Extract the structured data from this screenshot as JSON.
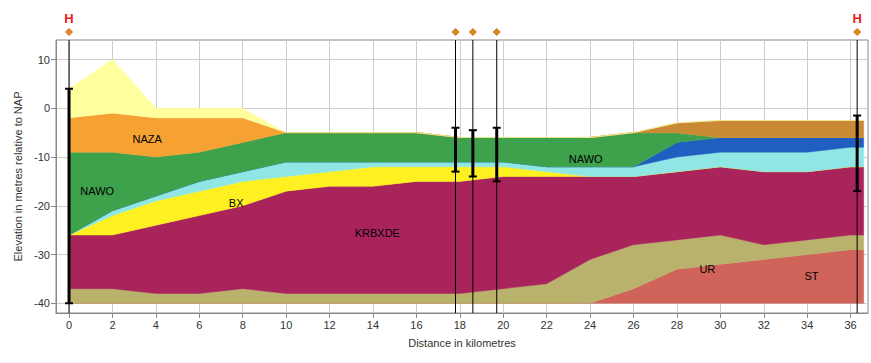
{
  "chart_data": {
    "type": "band",
    "x_label": "Distance in kilometres",
    "y_label": "Elevation in metres relative to NAP",
    "xlim": [
      -0.6,
      36.8
    ],
    "xticks": [
      0,
      2,
      4,
      6,
      8,
      10,
      12,
      14,
      16,
      18,
      20,
      22,
      24,
      26,
      28,
      30,
      32,
      34,
      36
    ],
    "ylim": [
      -42,
      14
    ],
    "yticks": [
      -40,
      -30,
      -20,
      -10,
      0,
      10
    ],
    "grid": true,
    "x": [
      0,
      2,
      4,
      6,
      8,
      10,
      12,
      14,
      16,
      18,
      20,
      22,
      24,
      26,
      28,
      30,
      32,
      34,
      36,
      36.6
    ],
    "bands": [
      {
        "color": "#d0635a",
        "bottom": [
          -40,
          -40,
          -40,
          -40,
          -40,
          -40,
          -40,
          -40,
          -40,
          -40,
          -40,
          -40,
          -40,
          -40,
          -40,
          -40,
          -40,
          -40,
          -40,
          -40
        ],
        "top": [
          -40,
          -40,
          -40,
          -40,
          -40,
          -40,
          -40,
          -40,
          -40,
          -40,
          -40,
          -40,
          -40,
          -37,
          -33,
          -32,
          -31,
          -30,
          -29,
          -29
        ]
      },
      {
        "color": "#b9b26c",
        "top": [
          -37,
          -37,
          -38,
          -38,
          -37,
          -38,
          -38,
          -38,
          -38,
          -38,
          -37,
          -36,
          -31,
          -28,
          -27,
          -26,
          -28,
          -27,
          -26,
          -26
        ]
      },
      {
        "color": "#a8245a",
        "top": [
          -26,
          -26,
          -24,
          -22,
          -20,
          -17,
          -16,
          -16,
          -15,
          -15,
          -14,
          -14,
          -14,
          -14,
          -13,
          -12,
          -13,
          -13,
          -12,
          -12
        ]
      },
      {
        "color": "#fff021",
        "top": [
          -26,
          -22,
          -19,
          -17,
          -15,
          -14,
          -13,
          -12,
          -12,
          -12,
          -12,
          -13,
          -14,
          -14,
          -13,
          -12,
          -13,
          -13,
          -12,
          -12
        ]
      },
      {
        "color": "#8fe6e4",
        "top": [
          -26,
          -21,
          -18,
          -15,
          -13,
          -11,
          -11,
          -11,
          -11,
          -11,
          -11,
          -12,
          -12,
          -12,
          -10,
          -9,
          -9,
          -9,
          -8,
          -8
        ]
      },
      {
        "color": "#1f5fbf",
        "top": [
          -26,
          -21,
          -18,
          -15,
          -13,
          -11,
          -11,
          -11,
          -11,
          -11,
          -11,
          -12,
          -12,
          -12,
          -7,
          -6,
          -6,
          -6,
          -6,
          -6
        ]
      },
      {
        "color": "#3ea14c",
        "top": [
          -9,
          -9,
          -10,
          -9,
          -7,
          -5,
          -5,
          -5,
          -5,
          -6,
          -6,
          -6,
          -6,
          -5,
          -5,
          -6,
          -6,
          -6,
          -6,
          -6
        ]
      },
      {
        "color": "#f5a233",
        "top": [
          -2,
          -1,
          -2,
          -2,
          -2,
          -5,
          -5,
          -5,
          -5,
          -6,
          -6,
          -6,
          -6,
          -5,
          -5,
          -6,
          -6,
          -6,
          -6,
          -6
        ]
      },
      {
        "color": "#c98a36",
        "top": [
          -2,
          -1,
          -2,
          -2,
          -2,
          -5,
          -5,
          -5,
          -5,
          -6,
          -6,
          -6,
          -6,
          -5,
          -3,
          -2.5,
          -2.5,
          -2.5,
          -2.5,
          -2.5
        ]
      },
      {
        "color": "#ffff9e",
        "top": [
          4,
          10,
          0,
          0,
          0,
          -5,
          -5,
          -5,
          -5,
          -6,
          -6,
          -6,
          -6,
          -5,
          -3,
          -2.5,
          -2.5,
          -2.5,
          -2.5,
          -2.5
        ]
      }
    ],
    "annotations": [
      {
        "text": "NAZA",
        "x": 3.6,
        "y": -6.3
      },
      {
        "text": "NAWO",
        "x": 1.3,
        "y": -17
      },
      {
        "text": "BX",
        "x": 7.7,
        "y": -19.5
      },
      {
        "text": "KRBXDE",
        "x": 14.2,
        "y": -25.5
      },
      {
        "text": "NAWO",
        "x": 23.8,
        "y": -10.5
      },
      {
        "text": "UR",
        "x": 29.4,
        "y": -33
      },
      {
        "text": "ST",
        "x": 34.2,
        "y": -34.5
      }
    ],
    "boreholes": [
      {
        "x": 0,
        "top": 4,
        "bottom": -40
      },
      {
        "x": 17.8,
        "top": -4,
        "bottom": -13
      },
      {
        "x": 18.6,
        "top": -4.5,
        "bottom": -14
      },
      {
        "x": 19.7,
        "top": -4,
        "bottom": -15
      },
      {
        "x": 36.3,
        "top": -1.5,
        "bottom": -17
      }
    ],
    "markers": [
      {
        "x": 0,
        "label": "H"
      },
      {
        "x": 17.8
      },
      {
        "x": 18.6
      },
      {
        "x": 19.7
      },
      {
        "x": 36.3,
        "label": "H"
      }
    ]
  }
}
